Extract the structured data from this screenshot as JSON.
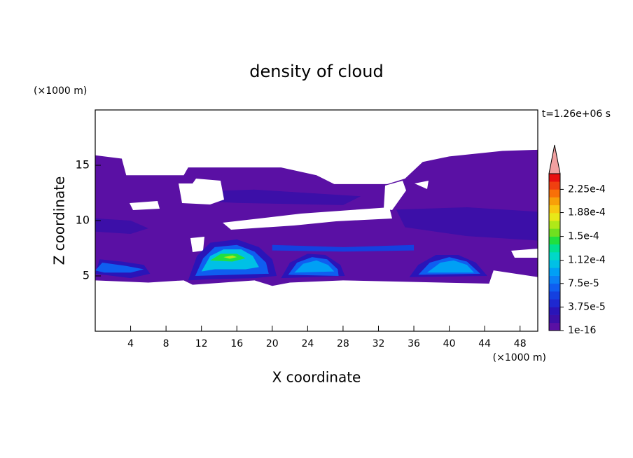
{
  "chart_data": {
    "type": "contour",
    "title": "density of cloud",
    "xlabel": "X coordinate",
    "ylabel": "Z coordinate",
    "x_unit": "(×1000 m)",
    "y_unit": "(×1000 m)",
    "time_label": "t=1.26e+06 s",
    "xlim": [
      0,
      50
    ],
    "ylim": [
      0,
      20
    ],
    "xticks": [
      4,
      8,
      12,
      16,
      20,
      24,
      28,
      32,
      36,
      40,
      44,
      48
    ],
    "yticks": [
      5,
      10,
      15
    ],
    "colorbar": {
      "clim": [
        1e-16,
        0.00025
      ],
      "ticks": [
        1e-16,
        {
          "value": 3.75e-05,
          "label": "3.75e-5"
        },
        {
          "value": 7.5e-05,
          "label": "7.5e-5"
        },
        {
          "value": 0.000112,
          "label": "1.12e-4"
        },
        {
          "value": 0.00015,
          "label": "1.5e-4"
        },
        {
          "value": 0.000188,
          "label": "1.88e-4"
        },
        {
          "value": 0.000225,
          "label": "2.25e-4"
        }
      ],
      "colors": [
        "#5a10a4",
        "#3c0fa8",
        "#2a14b8",
        "#1e28d0",
        "#1440e0",
        "#0f5ef0",
        "#0a80f5",
        "#00a0f5",
        "#00c0e6",
        "#00d8c8",
        "#00e090",
        "#20e040",
        "#70e020",
        "#b0e818",
        "#e8e818",
        "#f8c810",
        "#f8a008",
        "#f87008",
        "#f04010",
        "#e81010"
      ],
      "extend_color": "#f0a0a0"
    },
    "regions": [
      {
        "level": 0,
        "x": [
          0,
          3,
          3.5,
          10,
          10.5,
          21,
          25,
          27,
          33,
          35,
          37,
          40,
          46,
          50,
          50,
          45,
          44.5,
          28,
          22,
          20,
          18,
          11,
          10,
          6,
          0
        ],
        "z": [
          15.9,
          15.6,
          14.1,
          14.1,
          14.8,
          14.8,
          14.1,
          13.3,
          13.3,
          13.8,
          15.3,
          15.8,
          16.3,
          16.4,
          4.9,
          5.5,
          4.3,
          4.6,
          4.4,
          4.1,
          4.6,
          4.2,
          4.6,
          4.4,
          4.6
        ]
      },
      {
        "level": 1,
        "x": [
          0,
          4,
          6,
          4,
          0
        ],
        "z": [
          10.2,
          10,
          9.3,
          8.8,
          9
        ]
      },
      {
        "level": 1,
        "x": [
          10,
          18,
          30,
          28,
          16,
          11
        ],
        "z": [
          12.6,
          12.8,
          12.2,
          11.4,
          11.6,
          11.8
        ]
      },
      {
        "level": 1,
        "x": [
          34,
          42,
          50,
          50,
          42,
          35
        ],
        "z": [
          11,
          11.2,
          10.8,
          8.2,
          8.6,
          9.4
        ]
      },
      {
        "level": 4,
        "x": [
          20,
          28,
          36,
          36,
          28,
          20
        ],
        "z": [
          7.8,
          7.6,
          7.8,
          7.3,
          7.2,
          7.3
        ]
      },
      {
        "level": 2,
        "x": [
          0,
          0.5,
          3,
          5.5,
          6.2,
          4
        ],
        "z": [
          5.2,
          6.5,
          6.3,
          6,
          5.2,
          4.8
        ]
      },
      {
        "level": 5,
        "x": [
          0,
          0.8,
          3.5,
          5.5,
          4,
          1
        ],
        "z": [
          5.5,
          6.2,
          5.9,
          5.6,
          5.3,
          5.3
        ]
      },
      {
        "level": 2,
        "x": [
          10.5,
          11.5,
          13,
          16,
          18.5,
          20,
          20.5,
          18,
          13
        ],
        "z": [
          4.6,
          6.8,
          8,
          8.3,
          7.6,
          6.5,
          5,
          4.8,
          4.7
        ]
      },
      {
        "level": 5,
        "x": [
          11.3,
          12.2,
          13.5,
          16,
          18,
          19.3,
          19.6
        ],
        "z": [
          5,
          6.6,
          7.6,
          7.8,
          7.2,
          6.2,
          5.2
        ]
      },
      {
        "level": 8,
        "x": [
          12,
          13,
          14.5,
          16.5,
          17.8,
          18.5,
          17,
          13.5
        ],
        "z": [
          5.4,
          6.8,
          7.4,
          7.4,
          6.8,
          5.8,
          5.6,
          5.6
        ]
      },
      {
        "level": 11,
        "x": [
          13,
          14.2,
          16,
          17,
          15.5
        ],
        "z": [
          6.4,
          7,
          7,
          6.6,
          6.3
        ]
      },
      {
        "level": 13,
        "x": [
          14.5,
          15.5,
          16,
          15.2
        ],
        "z": [
          6.7,
          6.85,
          6.7,
          6.55
        ]
      },
      {
        "level": 2,
        "x": [
          21,
          22,
          24,
          26,
          27.7,
          28.2
        ],
        "z": [
          4.8,
          6.2,
          7,
          6.9,
          6,
          5
        ]
      },
      {
        "level": 5,
        "x": [
          21.8,
          22.8,
          24.5,
          26.2,
          27.4,
          27.5
        ],
        "z": [
          5.1,
          6.2,
          6.7,
          6.5,
          5.6,
          5
        ]
      },
      {
        "level": 7,
        "x": [
          22.5,
          23.5,
          25,
          26.3,
          27
        ],
        "z": [
          5.3,
          6.1,
          6.4,
          6,
          5.4
        ]
      },
      {
        "level": 2,
        "x": [
          35.5,
          36.5,
          38.5,
          41,
          43,
          44.3
        ],
        "z": [
          4.9,
          6,
          6.9,
          6.9,
          6.2,
          5
        ]
      },
      {
        "level": 5,
        "x": [
          36.5,
          37.8,
          40,
          42,
          43.5
        ],
        "z": [
          5.1,
          6.2,
          6.7,
          6.3,
          5.2
        ]
      },
      {
        "level": 7,
        "x": [
          37.5,
          39,
          40.5,
          42,
          42.8
        ],
        "z": [
          5.3,
          6.2,
          6.4,
          6,
          5.3
        ]
      }
    ]
  }
}
